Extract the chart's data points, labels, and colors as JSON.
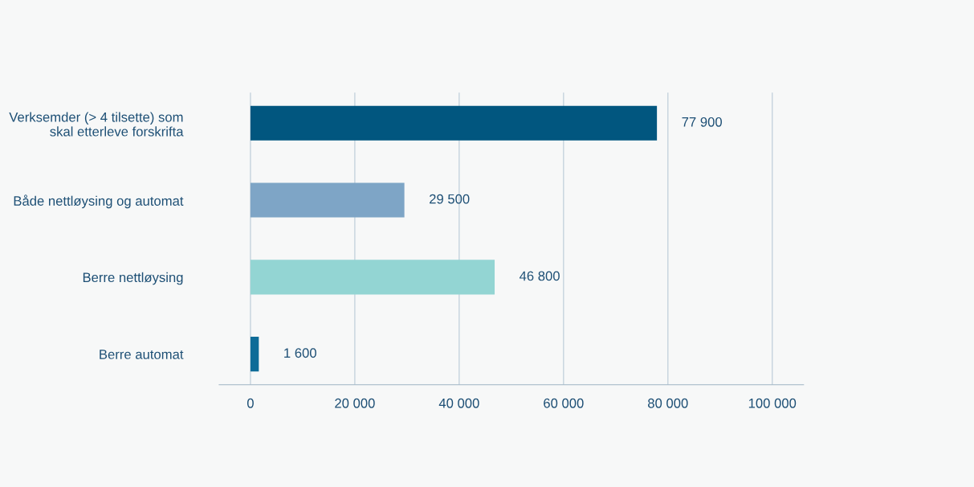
{
  "chart_data": {
    "type": "bar",
    "orientation": "horizontal",
    "categories": [
      "Verksemder (> 4 tilsette) som\nskal etterleve forskrifta",
      "Både nettløysing og automat",
      "Berre nettløysing",
      "Berre automat"
    ],
    "values": [
      77900,
      29500,
      46800,
      1600
    ],
    "colors": [
      "#01567f",
      "#7ea5c6",
      "#93d5d3",
      "#0e6c98"
    ],
    "value_labels": [
      "77 900",
      "29 500",
      "46 800",
      "1 600"
    ],
    "xlim": [
      -6000,
      106000
    ],
    "xticks": [
      0,
      {
        "value": 20000,
        "label": "20 000"
      },
      {
        "value": 40000,
        "label": "40 000"
      },
      {
        "value": 60000,
        "label": "60 000"
      },
      {
        "value": 80000,
        "label": "80 000"
      },
      {
        "value": 100000,
        "label": "100 000"
      }
    ],
    "grid": "x",
    "legend": false
  }
}
